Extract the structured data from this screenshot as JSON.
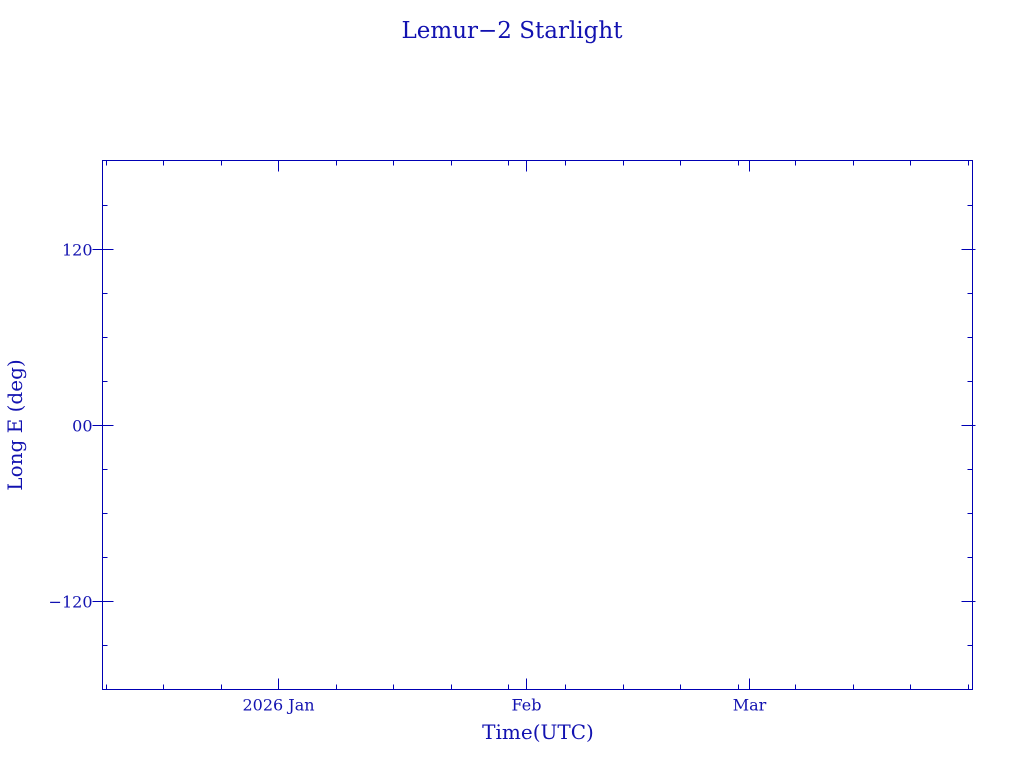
{
  "chart_data": {
    "type": "line",
    "title": "Lemur−2 Starlight",
    "xlabel": "Time(UTC)",
    "ylabel": "Long E (deg)",
    "x_ticks": [
      {
        "date": "2026-01-01",
        "label": "2026 Jan"
      },
      {
        "date": "2026-02-01",
        "label": "Feb"
      },
      {
        "date": "2026-03-01",
        "label": "Mar"
      }
    ],
    "xlim": [
      "2025-12-10",
      "2026-03-29"
    ],
    "y_ticks": [
      {
        "value": 120,
        "label": "120"
      },
      {
        "value": 0,
        "label": "00"
      },
      {
        "value": -120,
        "label": "−120"
      }
    ],
    "ylim": [
      -180,
      180
    ],
    "y_minor_step": 30,
    "x_minor_step_days": 6,
    "grid": false,
    "series": []
  },
  "colors": {
    "axes": "#0000b4",
    "text": "#1212b0",
    "background": "#ffffff"
  }
}
